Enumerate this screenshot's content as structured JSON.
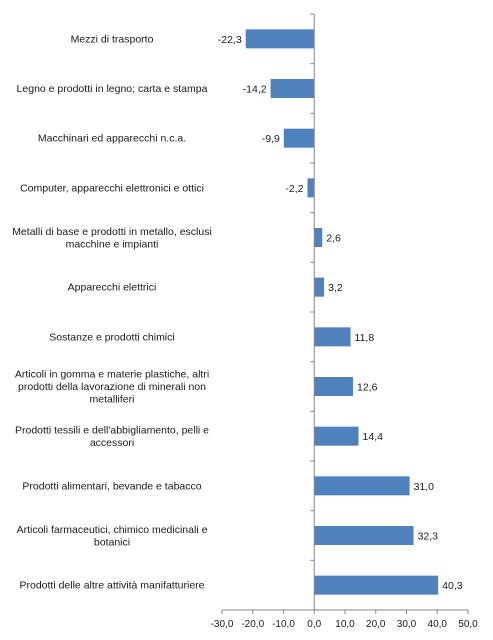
{
  "chart_data": {
    "type": "bar",
    "orientation": "horizontal",
    "categories": [
      "Mezzi di trasporto",
      "Legno e prodotti in legno; carta e stampa",
      "Macchinari ed apparecchi n.c.a.",
      "Computer, apparecchi elettronici e ottici",
      "Metalli di base e prodotti in metallo, esclusi macchine e impianti",
      "Apparecchi elettrici",
      "Sostanze e prodotti chimici",
      "Articoli in gomma e materie plastiche, altri prodotti della lavorazione di minerali non metalliferi",
      "Prodotti tessili e dell'abbigliamento, pelli e accessori",
      "Prodotti alimentari, bevande e tabacco",
      "Articoli farmaceutici, chimico medicinali e botanici",
      "Prodotti delle altre attività manifatturiere"
    ],
    "category_lines": [
      [
        "Mezzi di trasporto"
      ],
      [
        "Legno e prodotti in legno; carta e stampa"
      ],
      [
        "Macchinari ed apparecchi n.c.a."
      ],
      [
        "Computer, apparecchi elettronici e ottici"
      ],
      [
        "Metalli di base e prodotti in metallo, esclusi",
        "macchine e impianti"
      ],
      [
        "Apparecchi elettrici"
      ],
      [
        "Sostanze e prodotti chimici"
      ],
      [
        "Articoli in gomma e materie plastiche, altri",
        "prodotti della lavorazione di minerali non",
        "metalliferi"
      ],
      [
        "Prodotti tessili e dell'abbigliamento, pelli e",
        "accessori"
      ],
      [
        "Prodotti alimentari, bevande e tabacco"
      ],
      [
        "Articoli farmaceutici, chimico medicinali e",
        "botanici"
      ],
      [
        "Prodotti delle altre attività manifatturiere"
      ]
    ],
    "values": [
      -22.3,
      -14.2,
      -9.9,
      -2.2,
      2.6,
      3.2,
      11.8,
      12.6,
      14.4,
      31.0,
      32.3,
      40.3
    ],
    "value_labels": [
      "-22,3",
      "-14,2",
      "-9,9",
      "-2,2",
      "2,6",
      "3,2",
      "11,8",
      "12,6",
      "14,4",
      "31,0",
      "32,3",
      "40,3"
    ],
    "xlim": [
      -30,
      50
    ],
    "x_ticks": [
      -30,
      -20,
      -10,
      0,
      10,
      20,
      30,
      40,
      50
    ],
    "x_tick_labels": [
      "-30,0",
      "-20,0",
      "-10,0",
      "0,0",
      "10,0",
      "20,0",
      "30,0",
      "40,0",
      "50,0"
    ],
    "bar_color": "#4f81bd",
    "axis_color": "#868686",
    "grid": false,
    "legend": "none"
  }
}
